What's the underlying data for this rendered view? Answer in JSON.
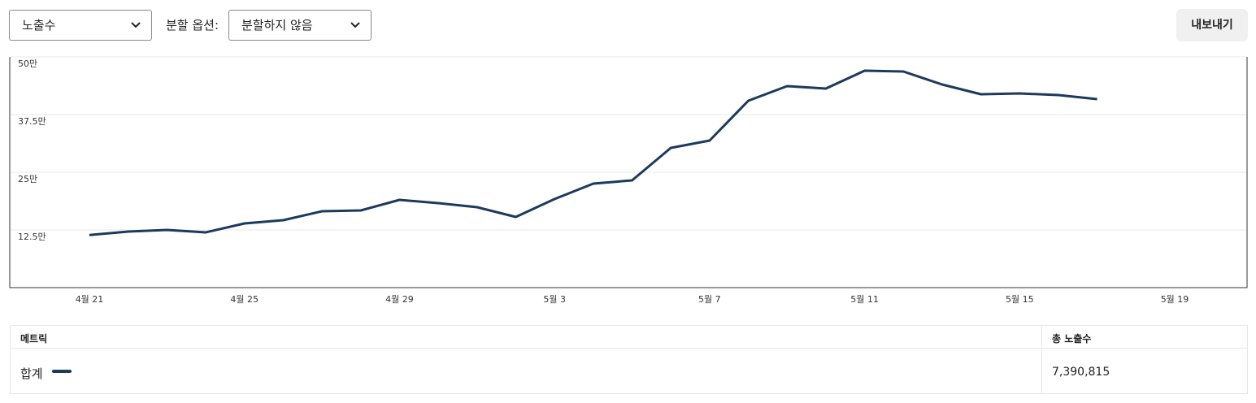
{
  "controls": {
    "metric_select": "노출수",
    "split_label": "분할 옵션:",
    "split_select": "분할하지 않음",
    "export_button": "내보내기"
  },
  "chart_data": {
    "type": "line",
    "categories": [
      "4월 21",
      null,
      null,
      null,
      "4월 25",
      null,
      null,
      null,
      "4월 29",
      null,
      null,
      null,
      "5월 3",
      null,
      null,
      null,
      "5월 7",
      null,
      null,
      null,
      "5월 11",
      null,
      null,
      null,
      "5월 15",
      null,
      null,
      null,
      "5월 19"
    ],
    "series": [
      {
        "name": "합계",
        "color": "#1c3a5c",
        "values": [
          114000,
          121500,
          125000,
          119700,
          139000,
          146100,
          165500,
          167300,
          190100,
          183100,
          174300,
          153200,
          191900,
          225400,
          232400,
          302800,
          318700,
          404900,
          436600,
          431300,
          470100,
          468300,
          440100,
          419000,
          420800,
          417300,
          408500,
          null,
          null
        ]
      }
    ],
    "ylim": [
      0,
      500000
    ],
    "yticks": [
      {
        "value": 125000,
        "label": "12.5만"
      },
      {
        "value": 250000,
        "label": "25만"
      },
      {
        "value": 375000,
        "label": "37.5만"
      },
      {
        "value": 500000,
        "label": "50만"
      }
    ],
    "grid": true
  },
  "table": {
    "headers": [
      "메트릭",
      "총 노출수"
    ],
    "rows": [
      [
        "합계",
        "7,390,815"
      ]
    ]
  }
}
